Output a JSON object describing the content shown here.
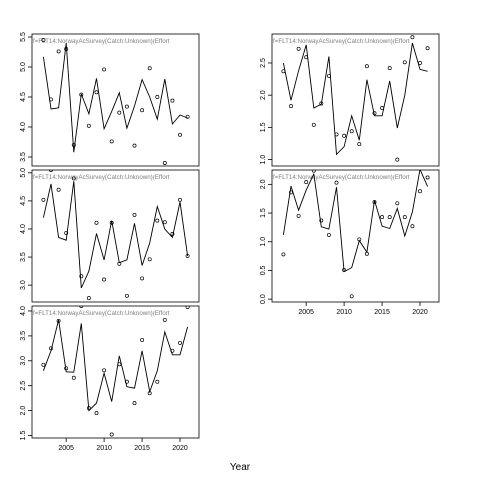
{
  "chart_data": {
    "type": "line",
    "layout": "faceted",
    "xlabel": "Year",
    "grid": false,
    "legend": "none",
    "colors": {
      "line": "#000000",
      "points": "#000000",
      "panel_title": "#808080"
    },
    "panels": [
      {
        "title": "f=FLT14:NorwayAcSurvey(Catch:Unknown)(Effort",
        "xlim": [
          2000.5,
          2022.5
        ],
        "ylim": [
          3.35,
          5.55
        ],
        "xticks": [],
        "yticks": [
          3.5,
          4.0,
          4.5,
          5.0,
          5.5
        ],
        "fitted": {
          "x": [
            2002,
            2003,
            2004,
            2005,
            2006,
            2007,
            2008,
            2009,
            2010,
            2011,
            2012,
            2013,
            2014,
            2015,
            2016,
            2017,
            2018,
            2019,
            2020,
            2021
          ],
          "y": [
            5.17,
            4.3,
            4.32,
            5.4,
            3.58,
            4.55,
            4.22,
            4.81,
            3.97,
            4.26,
            4.57,
            3.98,
            4.35,
            4.79,
            4.5,
            4.13,
            4.8,
            4.05,
            4.2,
            4.15
          ]
        },
        "observed": {
          "x": [
            2002,
            2003,
            2004,
            2005,
            2006,
            2007,
            2008,
            2009,
            2010,
            2011,
            2012,
            2013,
            2014,
            2015,
            2016,
            2017,
            2018,
            2019,
            2020,
            2021
          ],
          "y": [
            5.45,
            4.46,
            5.26,
            5.3,
            3.7,
            4.54,
            4.02,
            4.58,
            4.96,
            3.76,
            4.24,
            4.34,
            3.69,
            4.28,
            4.98,
            4.5,
            3.4,
            4.44,
            3.87,
            4.17
          ]
        }
      },
      {
        "title": "f=FLT14:NorwayAcSurvey(Catch:Unknown)(Effort",
        "xlim": [
          2000.5,
          2022.5
        ],
        "ylim": [
          0.9,
          2.95
        ],
        "xticks": [],
        "yticks": [
          1.0,
          1.5,
          2.0,
          2.5
        ],
        "fitted": {
          "x": [
            2002,
            2003,
            2004,
            2005,
            2006,
            2007,
            2008,
            2009,
            2010,
            2011,
            2012,
            2013,
            2014,
            2015,
            2016,
            2017,
            2018,
            2019,
            2020,
            2021
          ],
          "y": [
            2.5,
            1.92,
            2.38,
            2.78,
            1.8,
            1.86,
            2.6,
            1.08,
            1.2,
            1.68,
            1.3,
            2.24,
            1.68,
            1.68,
            2.22,
            1.49,
            2.0,
            2.81,
            2.4,
            2.37
          ]
        },
        "observed": {
          "x": [
            2002,
            2003,
            2004,
            2005,
            2006,
            2007,
            2008,
            2009,
            2010,
            2011,
            2012,
            2013,
            2014,
            2015,
            2016,
            2017,
            2018,
            2019,
            2020,
            2021
          ],
          "y": [
            2.37,
            1.83,
            2.72,
            2.59,
            1.54,
            1.87,
            2.3,
            1.39,
            1.37,
            1.44,
            1.24,
            2.45,
            1.72,
            1.8,
            2.42,
            1.0,
            2.51,
            2.9,
            2.5,
            2.73
          ]
        }
      },
      {
        "title": "f=FLT14:NorwayAcSurvey(Catch:Unknown)(Effort",
        "xlim": [
          2000.5,
          2022.5
        ],
        "ylim": [
          2.7,
          5.05
        ],
        "xticks": [],
        "yticks": [
          3.0,
          3.5,
          4.0,
          4.5,
          5.0
        ],
        "fitted": {
          "x": [
            2002,
            2003,
            2004,
            2005,
            2006,
            2007,
            2008,
            2009,
            2010,
            2011,
            2012,
            2013,
            2014,
            2015,
            2016,
            2017,
            2018,
            2019,
            2020,
            2021
          ],
          "y": [
            4.2,
            4.8,
            3.85,
            3.8,
            4.85,
            2.95,
            3.25,
            3.92,
            3.45,
            4.15,
            3.4,
            3.45,
            4.1,
            3.35,
            3.75,
            4.4,
            4.0,
            3.85,
            4.48,
            3.52
          ]
        },
        "observed": {
          "x": [
            2002,
            2003,
            2004,
            2005,
            2006,
            2007,
            2008,
            2009,
            2010,
            2011,
            2012,
            2013,
            2014,
            2015,
            2016,
            2017,
            2018,
            2019,
            2020,
            2021
          ],
          "y": [
            4.52,
            5.05,
            4.7,
            3.93,
            4.9,
            3.16,
            2.77,
            4.11,
            3.1,
            4.11,
            3.38,
            2.81,
            4.25,
            3.12,
            3.46,
            4.15,
            4.12,
            3.91,
            4.52,
            3.52
          ]
        }
      },
      {
        "title": "f=FLT14:NorwayAcSurvey(Catch:Unknown)(Effort",
        "xlim": [
          2000.5,
          2022.5
        ],
        "ylim": [
          -0.05,
          2.25
        ],
        "xticks": [
          2005,
          2010,
          2015,
          2020
        ],
        "yticks": [
          0.0,
          0.5,
          1.0,
          1.5,
          2.0
        ],
        "fitted": {
          "x": [
            2002,
            2003,
            2004,
            2005,
            2006,
            2007,
            2008,
            2009,
            2010,
            2011,
            2012,
            2013,
            2014,
            2015,
            2016,
            2017,
            2018,
            2019,
            2020,
            2021
          ],
          "y": [
            1.12,
            1.97,
            1.55,
            1.9,
            2.18,
            1.26,
            1.22,
            1.95,
            0.48,
            0.55,
            1.02,
            0.82,
            1.72,
            1.27,
            1.23,
            1.58,
            1.1,
            1.52,
            2.26,
            1.96
          ]
        },
        "observed": {
          "x": [
            2002,
            2003,
            2004,
            2005,
            2006,
            2007,
            2008,
            2009,
            2010,
            2011,
            2012,
            2013,
            2014,
            2015,
            2016,
            2017,
            2018,
            2019,
            2020,
            2021
          ],
          "y": [
            0.78,
            1.86,
            1.45,
            2.04,
            2.24,
            1.37,
            1.12,
            2.03,
            0.51,
            0.05,
            1.04,
            0.79,
            1.69,
            1.43,
            1.43,
            1.67,
            1.43,
            1.27,
            1.88,
            2.12
          ]
        }
      },
      {
        "title": "f=FLT14:NorwayAcSurvey(Catch:Unknown)(Effort",
        "xlim": [
          2000.5,
          2022.5
        ],
        "ylim": [
          1.45,
          4.1
        ],
        "xticks": [
          2005,
          2010,
          2015,
          2020
        ],
        "yticks": [
          1.5,
          2.0,
          2.5,
          3.0,
          3.5,
          4.0
        ],
        "fitted": {
          "x": [
            2002,
            2003,
            2004,
            2005,
            2006,
            2007,
            2008,
            2009,
            2010,
            2011,
            2012,
            2013,
            2014,
            2015,
            2016,
            2017,
            2018,
            2019,
            2020,
            2021
          ],
          "y": [
            2.8,
            3.2,
            3.82,
            2.78,
            2.77,
            3.75,
            2.0,
            2.15,
            2.75,
            2.18,
            3.1,
            2.48,
            2.45,
            3.2,
            2.38,
            2.8,
            3.58,
            3.12,
            3.12,
            3.68
          ]
        },
        "observed": {
          "x": [
            2002,
            2003,
            2004,
            2005,
            2006,
            2007,
            2008,
            2009,
            2010,
            2011,
            2012,
            2013,
            2014,
            2015,
            2016,
            2017,
            2018,
            2019,
            2020,
            2021
          ],
          "y": [
            2.92,
            3.25,
            3.8,
            2.85,
            2.66,
            4.1,
            2.05,
            1.95,
            2.81,
            1.52,
            2.93,
            2.58,
            2.15,
            3.42,
            2.35,
            2.58,
            3.82,
            3.2,
            3.36,
            4.08
          ]
        }
      }
    ]
  }
}
